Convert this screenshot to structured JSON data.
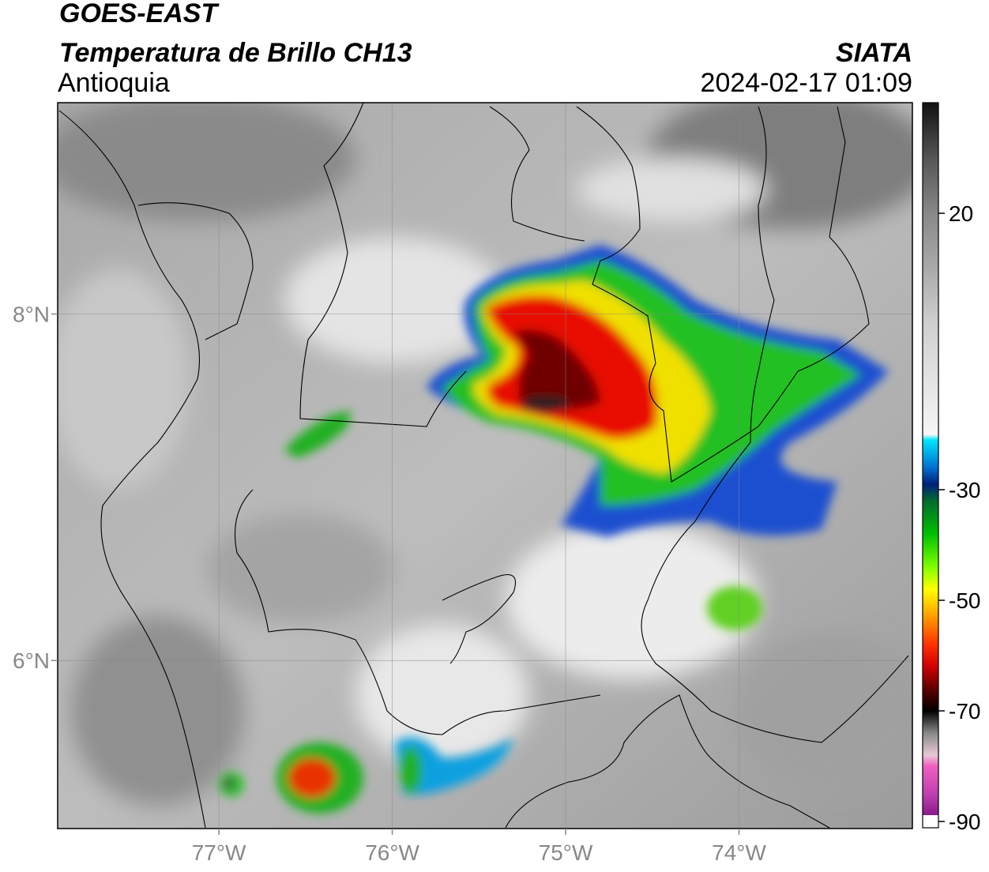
{
  "header": {
    "title": "GOES-EAST",
    "subtitle": "Temperatura de Brillo CH13",
    "region": "Antioquia",
    "source": "SIATA",
    "datetime": "2024-02-17 01:09"
  },
  "map": {
    "xlim": [
      -77.93,
      -73.0
    ],
    "ylim": [
      5.03,
      9.22
    ],
    "xticks": [
      {
        "value": -77,
        "label": "77°W"
      },
      {
        "value": -76,
        "label": "76°W"
      },
      {
        "value": -75,
        "label": "75°W"
      },
      {
        "value": -74,
        "label": "74°W"
      }
    ],
    "yticks": [
      {
        "value": 6,
        "label": "6°N"
      },
      {
        "value": 8,
        "label": "8°N"
      }
    ]
  },
  "colorbar": {
    "range": [
      -90,
      40
    ],
    "ticks": [
      20,
      -30,
      -50,
      -70,
      -90
    ]
  }
}
